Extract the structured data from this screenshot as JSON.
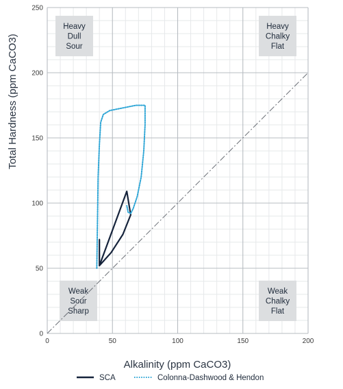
{
  "chart_data": {
    "type": "line",
    "xlabel": "Alkalinity (ppm CaCO3)",
    "ylabel": "Total Hardness (ppm CaCO3)",
    "xlim": [
      0,
      200
    ],
    "ylim": [
      0,
      250
    ],
    "x_ticks": [
      0,
      50,
      100,
      150,
      200
    ],
    "y_ticks": [
      0,
      50,
      100,
      150,
      200,
      250
    ],
    "minor_step": 10,
    "grid": true,
    "reference_line": {
      "x": [
        0,
        200
      ],
      "y": [
        0,
        200
      ],
      "style": "dash-dot"
    },
    "regions": [
      {
        "lines": [
          "Heavy",
          "Dull",
          "Sour"
        ],
        "corner": "top-left"
      },
      {
        "lines": [
          "Heavy",
          "Chalky",
          "Flat"
        ],
        "corner": "top-right"
      },
      {
        "lines": [
          "Weak",
          "Sour",
          "Sharp"
        ],
        "corner": "bottom-left"
      },
      {
        "lines": [
          "Weak",
          "Chalky",
          "Flat"
        ],
        "corner": "bottom-right"
      }
    ],
    "series": [
      {
        "name": "SCA",
        "color": "#15233b",
        "style": "solid",
        "x": [
          40,
          40,
          61,
          64,
          58,
          49,
          40
        ],
        "y": [
          72,
          52,
          109,
          91,
          76,
          62,
          52
        ],
        "closed": true
      },
      {
        "name": "Colonna-Dashwood & Hendon",
        "color": "#2fa6d6",
        "style": "dotted",
        "x": [
          38,
          39,
          40,
          41,
          43,
          48,
          58,
          68,
          75,
          75,
          74,
          72,
          69,
          66,
          64,
          62,
          61
        ],
        "y": [
          50,
          120,
          145,
          162,
          168,
          171,
          173,
          175,
          175,
          160,
          140,
          120,
          105,
          96,
          92,
          93,
          98
        ],
        "closed": false
      }
    ],
    "legend": {
      "position": "bottom"
    }
  }
}
